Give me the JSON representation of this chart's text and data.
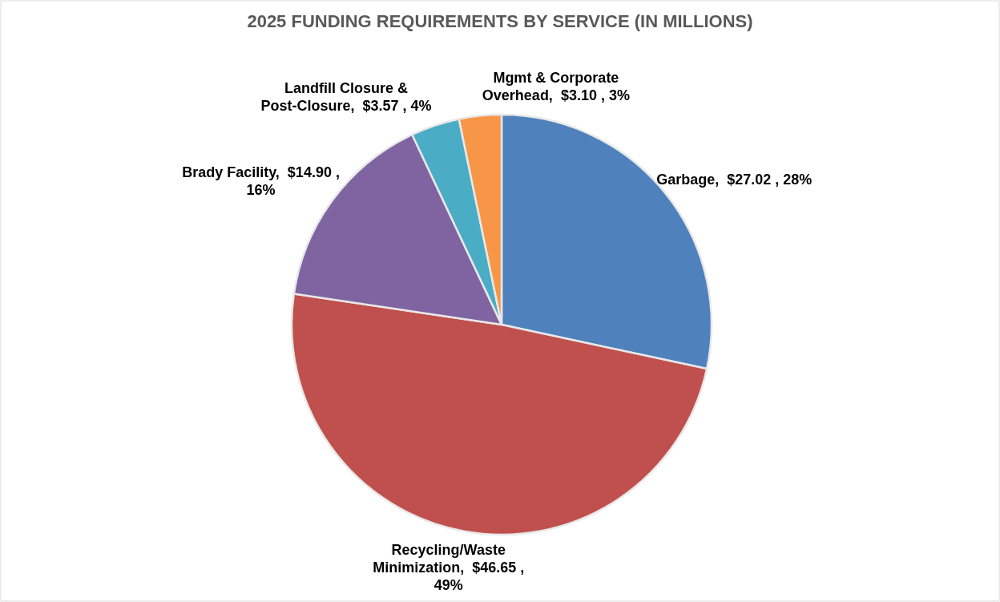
{
  "chart_data": {
    "type": "pie",
    "title": "2025 FUNDING REQUIREMENTS BY SERVICE (IN MILLIONS)",
    "categories": [
      "Garbage",
      "Recycling/Waste Minimization",
      "Brady Facility",
      "Landfill Closure & Post-Closure",
      "Mgmt & Corporate Overhead"
    ],
    "values": [
      27.02,
      46.65,
      14.9,
      3.57,
      3.1
    ],
    "value_labels": [
      "$27.02 , 28%",
      "$46.65 , 49%",
      "$14.90 , 16%",
      "$3.57 , 4%",
      "$3.10 , 3%"
    ],
    "colors": [
      "#4f81bd",
      "#c0504d",
      "#8064a2",
      "#4bacc6",
      "#f79646"
    ],
    "legend": false
  }
}
